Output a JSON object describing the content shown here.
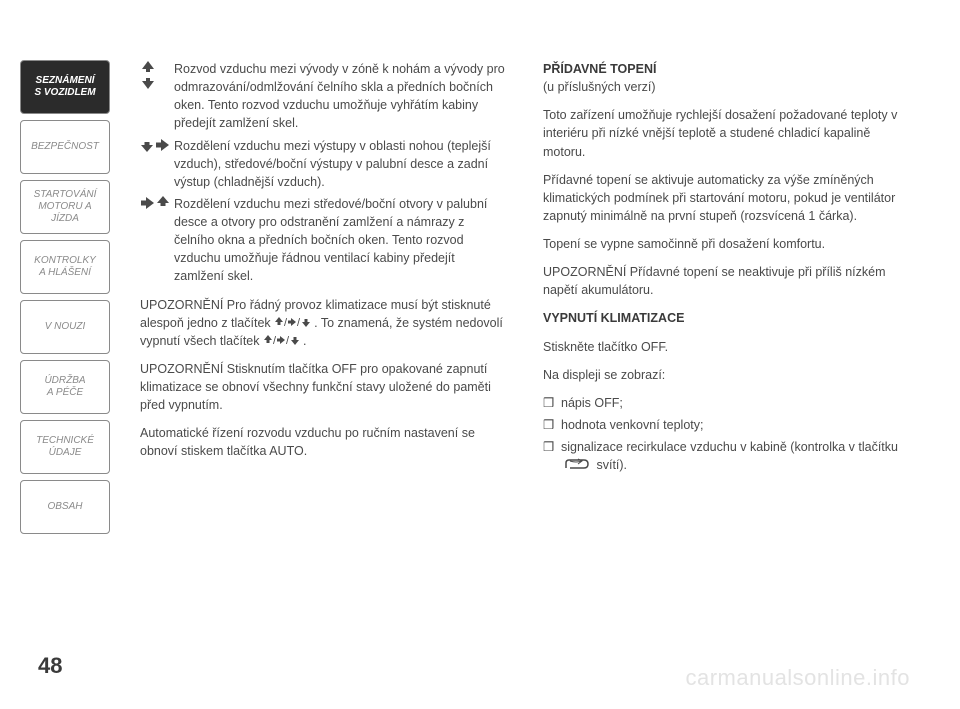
{
  "sidebar": {
    "items": [
      {
        "label": "SEZNÁMENÍ\nS VOZIDLEM",
        "active": true
      },
      {
        "label": "BEZPEČNOST",
        "active": false
      },
      {
        "label": "STARTOVÁNÍ\nMOTORU A JÍZDA",
        "active": false
      },
      {
        "label": "KONTROLKY\nA HLÁŠENÍ",
        "active": false
      },
      {
        "label": "V NOUZI",
        "active": false
      },
      {
        "label": "ÚDRŽBA\nA PÉČE",
        "active": false
      },
      {
        "label": "TECHNICKÉ\nÚDAJE",
        "active": false
      },
      {
        "label": "OBSAH",
        "active": false
      }
    ]
  },
  "left": {
    "icons": [
      {
        "glyphs": "↑↓",
        "stacked": true,
        "text": "Rozvod vzduchu mezi vývody v zóně k nohám a vývody pro odmrazování/odmlžování čelního skla a předních bočních oken. Tento rozvod vzduchu umožňuje vyhřátím kabiny předejít zamlžení skel."
      },
      {
        "glyphs": "↓➔",
        "stacked": false,
        "text": "Rozdělení vzduchu mezi výstupy v oblasti nohou (teplejší vzduch), středové/boční výstupy v palubní desce a zadní výstup (chladnější vzduch)."
      },
      {
        "glyphs": "➔↑",
        "stacked": false,
        "text": "Rozdělení vzduchu mezi středové/boční otvory v palubní desce a otvory pro odstranění zamlžení a námrazy z čelního okna a předních bočních oken. Tento rozvod vzduchu umožňuje řádnou ventilací kabiny předejít zamlžení skel."
      }
    ],
    "para1_a": "UPOZORNĚNÍ Pro řádný provoz klimatizace musí být stisknuté alespoň jedno z tlačítek ",
    "para1_b": ". To znamená, že systém nedovolí vypnutí všech tlačítek ",
    "para1_c": ".",
    "glyph_seq": "↑/➔/↓",
    "para2": "UPOZORNĚNÍ Stisknutím tlačítka OFF pro opakované zapnutí klimatizace se obnoví všechny funkční stavy uložené do paměti před vypnutím.",
    "para3": "Automatické řízení rozvodu vzduchu po ručním nastavení se obnoví stiskem tlačítka AUTO."
  },
  "right": {
    "h1": "PŘÍDAVNÉ TOPENÍ",
    "h1_sub": "(u příslušných verzí)",
    "p1": "Toto zařízení umožňuje rychlejší dosažení požadované teploty v interiéru při nízké vnější teplotě a studené chladicí kapalině motoru.",
    "p2": "Přídavné topení se aktivuje automaticky za výše zmíněných klimatických podmínek při startování motoru, pokud je ventilátor zapnutý minimálně na první stupeň (rozsvícená 1 čárka).",
    "p3": "Topení se vypne samočinně při dosažení komfortu.",
    "p4": "UPOZORNĚNÍ Přídavné topení se neaktivuje při příliš nízkém napětí akumulátoru.",
    "h2": "VYPNUTÍ KLIMATIZACE",
    "p5": "Stiskněte tlačítko OFF.",
    "p6": "Na displeji se zobrazí:",
    "bullets": [
      "nápis OFF;",
      "hodnota venkovní teploty;"
    ],
    "bullet3_a": "signalizace recirkulace vzduchu v kabině (kontrolka v tlačítku ",
    "bullet3_b": " svítí).",
    "bullet_marker": "❒"
  },
  "page_number": "48",
  "watermark": "carmanualsonline.info",
  "colors": {
    "text": "#4a4a4a",
    "border": "#8a8a8a",
    "active_bg": "#2b2b2b",
    "watermark": "#e3e3e3"
  }
}
